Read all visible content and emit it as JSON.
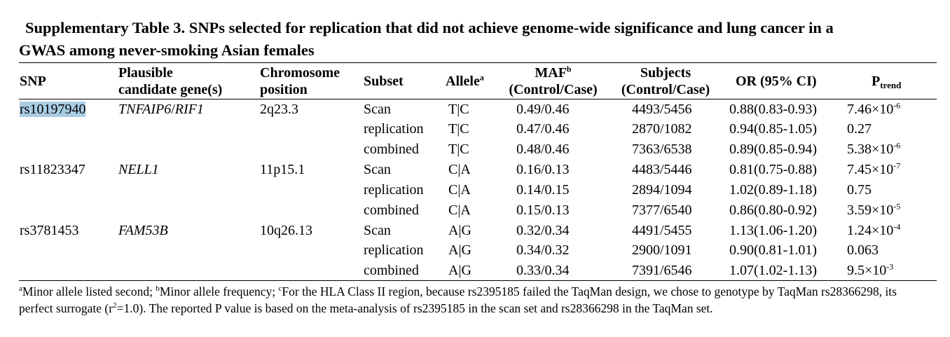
{
  "title": {
    "line1": "Supplementary Table 3. SNPs selected for replication that did not achieve genome-wide significance and lung cancer in a",
    "line2": "GWAS among never-smoking Asian females"
  },
  "headers": {
    "snp": "SNP",
    "gene_l1": "Plausible",
    "gene_l2": "candidate gene(s)",
    "chrom_l1": "Chromosome",
    "chrom_l2": "position",
    "subset": "Subset",
    "allele": "Allele",
    "allele_sup": "a",
    "maf_l1": "MAF",
    "maf_sup": "b",
    "maf_l2": "(Control/Case)",
    "subjects_l1": "Subjects",
    "subjects_l2": "(Control/Case)",
    "or": "OR (95% CI)",
    "p": "P",
    "p_sub": "trend"
  },
  "groups": [
    {
      "snp": "rs10197940",
      "highlighted": true,
      "gene": "TNFAIP6",
      "gene_sep": "/",
      "gene2": "RIF1",
      "chrom": "2q23.3",
      "rows": [
        {
          "subset": "Scan",
          "allele": "T|C",
          "maf": "0.49/0.46",
          "subjects": "4493/5456",
          "or": "0.88(0.83-0.93)",
          "p": "7.46×10",
          "p_exp": "-6"
        },
        {
          "subset": "replication",
          "allele": "T|C",
          "maf": "0.47/0.46",
          "subjects": "2870/1082",
          "or": "0.94(0.85-1.05)",
          "p": "0.27",
          "p_exp": ""
        },
        {
          "subset": "combined",
          "allele": "T|C",
          "maf": "0.48/0.46",
          "subjects": "7363/6538",
          "or": "0.89(0.85-0.94)",
          "p": "5.38×10",
          "p_exp": "-6"
        }
      ]
    },
    {
      "snp": "rs11823347",
      "highlighted": false,
      "gene": "NELL1",
      "gene_sep": "",
      "gene2": "",
      "chrom": "11p15.1",
      "rows": [
        {
          "subset": "Scan",
          "allele": "C|A",
          "maf": "0.16/0.13",
          "subjects": "4483/5446",
          "or": "0.81(0.75-0.88)",
          "p": "7.45×10",
          "p_exp": "-7"
        },
        {
          "subset": "replication",
          "allele": "C|A",
          "maf": "0.14/0.15",
          "subjects": "2894/1094",
          "or": "1.02(0.89-1.18)",
          "p": "0.75",
          "p_exp": ""
        },
        {
          "subset": "combined",
          "allele": "C|A",
          "maf": "0.15/0.13",
          "subjects": "7377/6540",
          "or": "0.86(0.80-0.92)",
          "p": "3.59×10",
          "p_exp": "-5"
        }
      ]
    },
    {
      "snp": "rs3781453",
      "highlighted": false,
      "gene": "FAM53B",
      "gene_sep": "",
      "gene2": "",
      "chrom": "10q26.13",
      "rows": [
        {
          "subset": "Scan",
          "allele": "A|G",
          "maf": "0.32/0.34",
          "subjects": "4491/5455",
          "or": "1.13(1.06-1.20)",
          "p": "1.24×10",
          "p_exp": "-4"
        },
        {
          "subset": "replication",
          "allele": "A|G",
          "maf": "0.34/0.32",
          "subjects": "2900/1091",
          "or": "0.90(0.81-1.01)",
          "p": "0.063",
          "p_exp": ""
        },
        {
          "subset": "combined",
          "allele": "A|G",
          "maf": "0.33/0.34",
          "subjects": "7391/6546",
          "or": "1.07(1.02-1.13)",
          "p": "9.5×10",
          "p_exp": "-3"
        }
      ]
    }
  ],
  "footnote": {
    "a_mark": "a",
    "a_text": "Minor allele listed second; ",
    "b_mark": "b",
    "b_text": "Minor allele frequency; ",
    "c_mark": "c",
    "c_text1": "For the HLA Class II region, because rs2395185 failed the TaqMan design, we chose to genotype by TaqMan rs28366298, its perfect surrogate (r",
    "r_sup": "2",
    "c_text2": "=1.0). The reported P value is based on the meta-analysis of rs2395185 in the scan set and rs28366298 in the TaqMan set."
  }
}
